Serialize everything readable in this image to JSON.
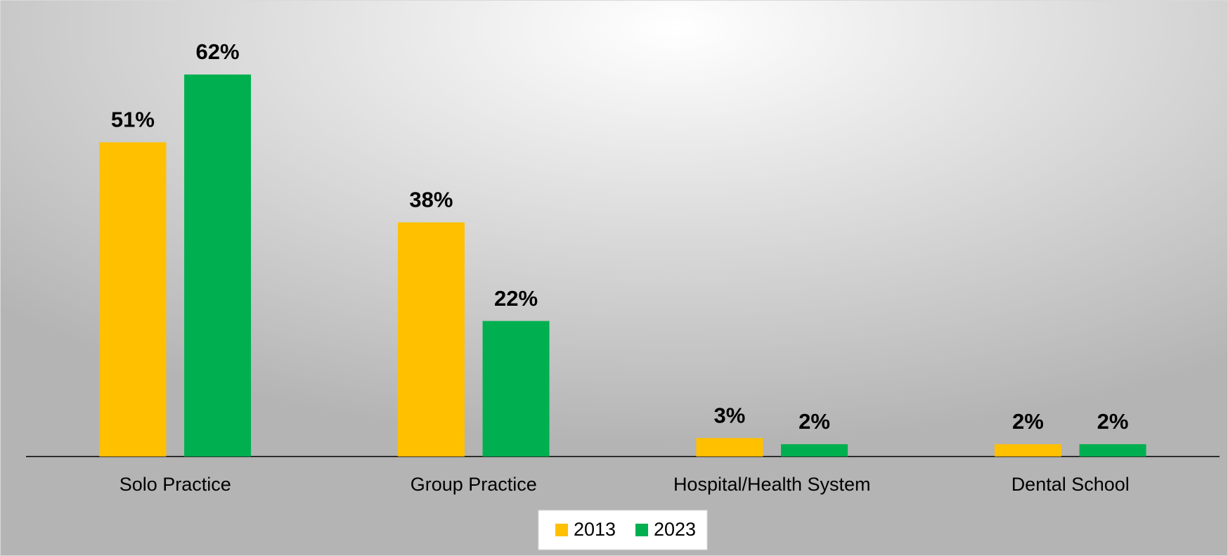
{
  "chart_data": {
    "type": "bar",
    "categories": [
      "Solo Practice",
      "Group Practice",
      "Hospital/Health System",
      "Dental School"
    ],
    "series": [
      {
        "name": "2013",
        "color": "#ffc000",
        "values": [
          51,
          38,
          3,
          2
        ],
        "value_labels": [
          "51%",
          "38%",
          "3%",
          "2%"
        ]
      },
      {
        "name": "2023",
        "color": "#00b050",
        "values": [
          62,
          22,
          2,
          2
        ],
        "value_labels": [
          "62%",
          "22%",
          "2%",
          "2%"
        ]
      }
    ],
    "legend": "bottom"
  }
}
